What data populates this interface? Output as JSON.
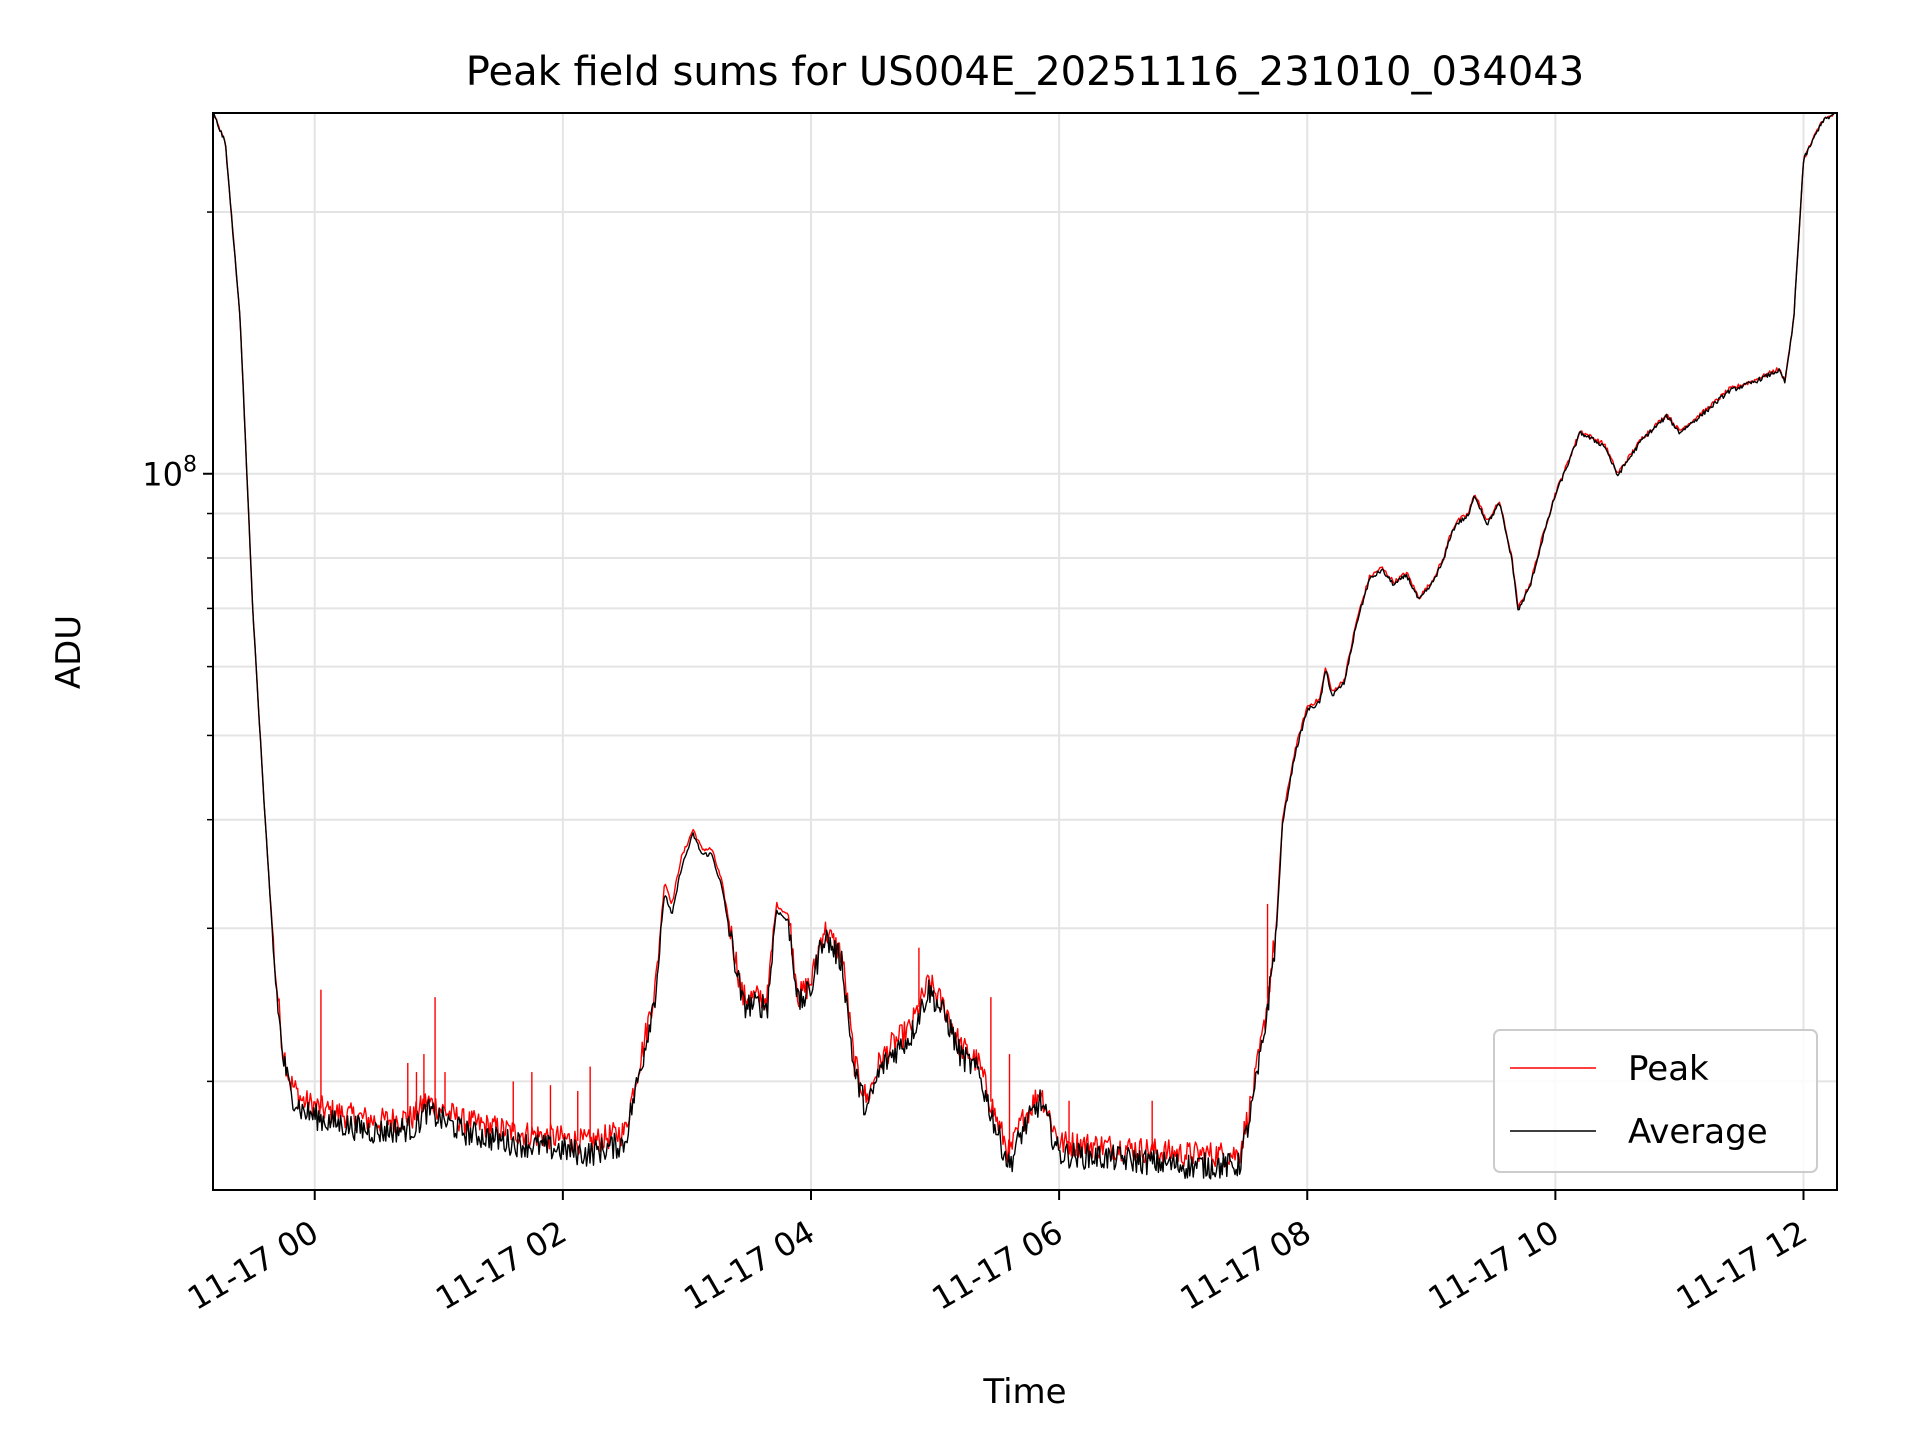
{
  "chart_data": {
    "type": "line",
    "title": "Peak field sums for US004E_20251116_231010_034043",
    "xlabel": "Time",
    "ylabel": "ADU",
    "yscale": "log",
    "xlim_hours": [
      -0.82,
      12.27
    ],
    "ylim": [
      15000000,
      260000000
    ],
    "grid": true,
    "legend_position": "lower-right",
    "x_tick_labels": [
      "11-17 00",
      "11-17 02",
      "11-17 04",
      "11-17 06",
      "11-17 08",
      "11-17 10",
      "11-17 12"
    ],
    "x_ticks_hours": [
      0,
      2,
      4,
      6,
      8,
      10,
      12
    ],
    "y_major_ticks": [
      {
        "value": 100000000,
        "base": "10",
        "exp": "8"
      }
    ],
    "y_minor_ticks": [
      20000000,
      30000000,
      40000000,
      50000000,
      60000000,
      70000000,
      80000000,
      90000000,
      200000000
    ],
    "series": [
      {
        "name": "Peak",
        "color": "#ff0000",
        "x_hours": [
          -0.82,
          -0.72,
          -0.6,
          -0.5,
          -0.4,
          -0.32,
          -0.26,
          -0.2,
          -0.1,
          0.1,
          0.5,
          0.8,
          0.9,
          1.2,
          1.6,
          2.0,
          2.2,
          2.5,
          2.55,
          2.65,
          2.75,
          2.82,
          2.88,
          2.95,
          3.05,
          3.12,
          3.2,
          3.28,
          3.45,
          3.55,
          3.65,
          3.72,
          3.82,
          3.9,
          4.0,
          4.1,
          4.25,
          4.35,
          4.45,
          4.55,
          4.65,
          4.8,
          4.95,
          5.1,
          5.2,
          5.35,
          5.5,
          5.6,
          5.7,
          5.85,
          6.0,
          6.5,
          7.0,
          7.45,
          7.55,
          7.65,
          7.75,
          7.8,
          7.9,
          8.0,
          8.1,
          8.15,
          8.2,
          8.3,
          8.4,
          8.5,
          8.6,
          8.7,
          8.8,
          8.9,
          9.0,
          9.1,
          9.15,
          9.2,
          9.3,
          9.35,
          9.45,
          9.55,
          9.65,
          9.7,
          9.8,
          9.9,
          10.0,
          10.1,
          10.2,
          10.4,
          10.5,
          10.7,
          10.9,
          11.0,
          11.2,
          11.4,
          11.6,
          11.8,
          11.85,
          11.92,
          12.0,
          12.15,
          12.27
        ],
        "y": [
          260000000,
          240000000,
          150000000,
          70000000,
          40000000,
          27000000,
          22000000,
          20000000,
          19000000,
          18500000,
          18000000,
          18200000,
          19000000,
          18000000,
          17500000,
          17200000,
          17000000,
          17500000,
          19000000,
          22000000,
          26000000,
          34000000,
          32000000,
          36000000,
          39000000,
          37000000,
          37000000,
          34000000,
          25000000,
          25000000,
          25000000,
          32000000,
          31000000,
          25000000,
          26000000,
          30000000,
          28000000,
          21000000,
          19000000,
          21000000,
          22000000,
          23000000,
          26000000,
          24000000,
          22000000,
          21000000,
          18000000,
          16500000,
          18000000,
          19500000,
          17000000,
          16800000,
          16500000,
          16500000,
          19000000,
          23000000,
          30000000,
          40000000,
          48000000,
          54000000,
          55000000,
          60000000,
          56000000,
          58000000,
          68000000,
          76000000,
          78000000,
          75000000,
          77000000,
          72000000,
          75000000,
          80000000,
          85000000,
          88000000,
          90000000,
          95000000,
          88000000,
          93000000,
          80000000,
          70000000,
          75000000,
          85000000,
          95000000,
          103000000,
          112000000,
          108000000,
          100000000,
          110000000,
          117000000,
          112000000,
          118000000,
          125000000,
          128000000,
          132000000,
          128000000,
          150000000,
          230000000,
          255000000,
          260000000
        ]
      },
      {
        "name": "Average",
        "color": "#000000",
        "x_hours": [
          -0.82,
          -0.72,
          -0.6,
          -0.5,
          -0.4,
          -0.32,
          -0.26,
          -0.2,
          -0.1,
          0.1,
          0.5,
          0.8,
          0.9,
          1.2,
          1.6,
          2.0,
          2.2,
          2.5,
          2.55,
          2.65,
          2.75,
          2.82,
          2.88,
          2.95,
          3.05,
          3.12,
          3.2,
          3.28,
          3.45,
          3.55,
          3.65,
          3.72,
          3.82,
          3.9,
          4.0,
          4.1,
          4.25,
          4.35,
          4.45,
          4.55,
          4.65,
          4.8,
          4.95,
          5.1,
          5.2,
          5.35,
          5.5,
          5.6,
          5.7,
          5.85,
          6.0,
          6.5,
          7.0,
          7.45,
          7.55,
          7.65,
          7.75,
          7.8,
          7.9,
          8.0,
          8.1,
          8.15,
          8.2,
          8.3,
          8.4,
          8.5,
          8.6,
          8.7,
          8.8,
          8.9,
          9.0,
          9.1,
          9.15,
          9.2,
          9.3,
          9.35,
          9.45,
          9.55,
          9.65,
          9.7,
          9.8,
          9.9,
          10.0,
          10.1,
          10.2,
          10.4,
          10.5,
          10.7,
          10.9,
          11.0,
          11.2,
          11.4,
          11.6,
          11.8,
          11.85,
          11.92,
          12.0,
          12.15,
          12.27
        ],
        "y": [
          260000000,
          240000000,
          150000000,
          70000000,
          40000000,
          26500000,
          21500000,
          19500000,
          18500000,
          18000000,
          17500000,
          17700000,
          18500000,
          17500000,
          17000000,
          16700000,
          16500000,
          17000000,
          18500000,
          21500000,
          25500000,
          33000000,
          31000000,
          35000000,
          38500000,
          36500000,
          36500000,
          33500000,
          24500000,
          24500000,
          24500000,
          31500000,
          30500000,
          24500000,
          25500000,
          29500000,
          27500000,
          20500000,
          18500000,
          20500000,
          21500000,
          22500000,
          25500000,
          23500000,
          21500000,
          20500000,
          17500000,
          16000000,
          17500000,
          19000000,
          16500000,
          16300000,
          16000000,
          16000000,
          18500000,
          22500000,
          29500000,
          39500000,
          47500000,
          53500000,
          54500000,
          59500000,
          55500000,
          57500000,
          67500000,
          75500000,
          77500000,
          74500000,
          76500000,
          71500000,
          74500000,
          79500000,
          84500000,
          87500000,
          89500000,
          94500000,
          87500000,
          92500000,
          79500000,
          69500000,
          74500000,
          84500000,
          94500000,
          102500000,
          111500000,
          107500000,
          99500000,
          109500000,
          116500000,
          111500000,
          117500000,
          124500000,
          127500000,
          131500000,
          127500000,
          149500000,
          229500000,
          254500000,
          260000000
        ]
      }
    ],
    "spikes": {
      "series": "Peak",
      "x_hours": [
        0.05,
        0.75,
        0.82,
        0.88,
        0.97,
        1.05,
        1.6,
        1.75,
        1.9,
        2.12,
        2.22,
        4.87,
        5.45,
        5.6,
        6.08,
        6.75,
        7.68
      ],
      "y": [
        25500000,
        21000000,
        20500000,
        21500000,
        25000000,
        20500000,
        20000000,
        20500000,
        19800000,
        19500000,
        20800000,
        28500000,
        25000000,
        21500000,
        19000000,
        19000000,
        32000000
      ]
    }
  }
}
